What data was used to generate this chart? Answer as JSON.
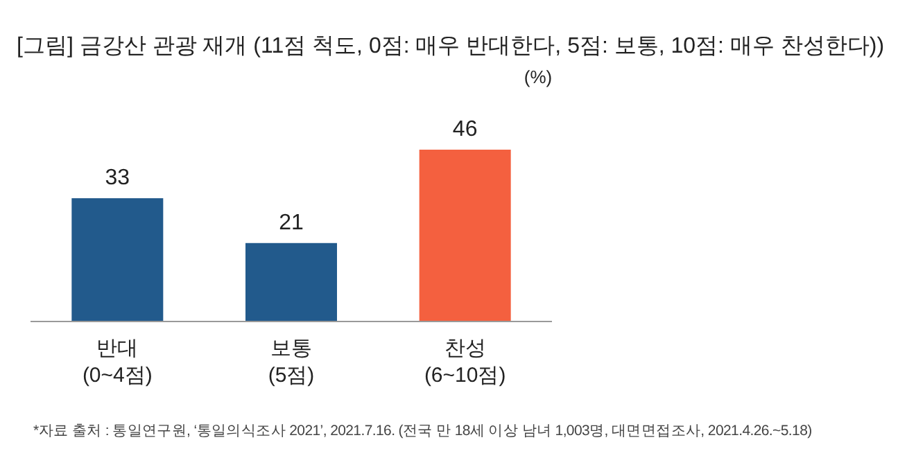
{
  "chart_data": {
    "type": "bar",
    "title": "[그림] 금강산 관광 재개 (11점 척도, 0점: 매우 반대한다, 5점: 보통, 10점: 매우 찬성한다))",
    "ylabel": "(%)",
    "categories": [
      "반대\n(0~4점)",
      "보통\n(5점)",
      "찬성\n(6~10점)"
    ],
    "values": [
      33,
      21,
      46
    ],
    "colors": [
      "#225a8c",
      "#225a8c",
      "#f4603f"
    ],
    "data_labels": true,
    "annotations": [
      "*자료 출처 : 통일연구원, ‘통일의식조사 2021’, 2021.7.16. (전국 만 18세 이상 남녀 1,003명, 대면면접조사, 2021.4.26.~5.18)"
    ]
  }
}
